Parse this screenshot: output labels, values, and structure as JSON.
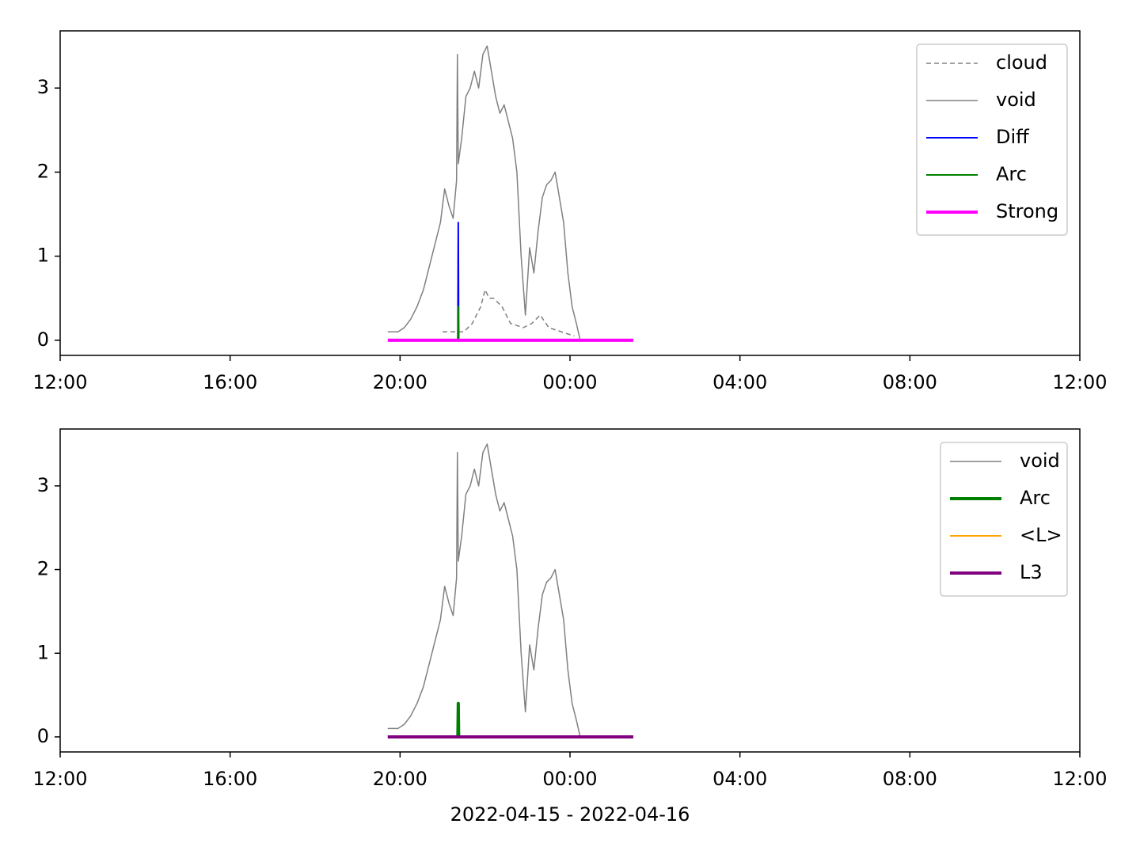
{
  "chart_data": [
    {
      "type": "line",
      "xlim": [
        0,
        24
      ],
      "ylim": [
        -0.18,
        3.68
      ],
      "xticks": [
        {
          "value": 0,
          "label": "12:00"
        },
        {
          "value": 4,
          "label": "16:00"
        },
        {
          "value": 8,
          "label": "20:00"
        },
        {
          "value": 12,
          "label": "00:00"
        },
        {
          "value": 16,
          "label": "04:00"
        },
        {
          "value": 20,
          "label": "08:00"
        },
        {
          "value": 24,
          "label": "12:00"
        }
      ],
      "yticks": [
        0,
        1,
        2,
        3
      ],
      "legend": "upper right",
      "series": [
        {
          "name": "cloud",
          "color": "#808080",
          "linestyle": "dashed",
          "linewidth": 1.5,
          "x": [
            9.0,
            9.3,
            9.5,
            9.7,
            9.9,
            10.0,
            10.1,
            10.2,
            10.4,
            10.6,
            10.9,
            11.1,
            11.3,
            11.5,
            11.8,
            12.1
          ],
          "values": [
            0.1,
            0.1,
            0.1,
            0.2,
            0.4,
            0.6,
            0.5,
            0.5,
            0.4,
            0.2,
            0.15,
            0.2,
            0.3,
            0.15,
            0.1,
            0.05
          ]
        },
        {
          "name": "void",
          "color": "#808080",
          "linewidth": 1.5,
          "x": [
            7.71,
            7.95,
            8.1,
            8.25,
            8.4,
            8.55,
            8.65,
            8.8,
            8.95,
            9.05,
            9.15,
            9.25,
            9.33,
            9.35,
            9.37,
            9.45,
            9.55,
            9.65,
            9.75,
            9.85,
            9.95,
            10.05,
            10.15,
            10.25,
            10.35,
            10.45,
            10.55,
            10.65,
            10.75,
            10.85,
            10.95,
            11.05,
            11.15,
            11.25,
            11.35,
            11.45,
            11.55,
            11.65,
            11.75,
            11.85,
            11.95,
            12.05,
            12.15,
            12.24
          ],
          "values": [
            0.1,
            0.1,
            0.15,
            0.25,
            0.4,
            0.6,
            0.8,
            1.1,
            1.4,
            1.8,
            1.6,
            1.45,
            1.9,
            3.4,
            2.1,
            2.4,
            2.9,
            3.0,
            3.2,
            3.0,
            3.4,
            3.5,
            3.2,
            2.9,
            2.7,
            2.8,
            2.6,
            2.4,
            2.0,
            1.0,
            0.3,
            1.1,
            0.8,
            1.3,
            1.7,
            1.85,
            1.9,
            2.0,
            1.7,
            1.4,
            0.8,
            0.4,
            0.2,
            0.0
          ]
        },
        {
          "name": "Diff",
          "color": "#0000ff",
          "linewidth": 2,
          "x": [
            9.36,
            9.37,
            9.38
          ],
          "values": [
            0,
            1.4,
            0
          ]
        },
        {
          "name": "Arc",
          "color": "#008000",
          "linewidth": 2,
          "x": [
            9.36,
            9.37,
            9.38
          ],
          "values": [
            0,
            0.4,
            0
          ]
        },
        {
          "name": "Strong",
          "color": "#ff00ff",
          "linewidth": 4,
          "x": [
            7.71,
            13.49
          ],
          "values": [
            0,
            0
          ]
        }
      ]
    },
    {
      "type": "line",
      "xlim": [
        0,
        24
      ],
      "ylim": [
        -0.18,
        3.68
      ],
      "xticks": [
        {
          "value": 0,
          "label": "12:00"
        },
        {
          "value": 4,
          "label": "16:00"
        },
        {
          "value": 8,
          "label": "20:00"
        },
        {
          "value": 12,
          "label": "00:00"
        },
        {
          "value": 16,
          "label": "04:00"
        },
        {
          "value": 20,
          "label": "08:00"
        },
        {
          "value": 24,
          "label": "12:00"
        }
      ],
      "yticks": [
        0,
        1,
        2,
        3
      ],
      "legend": "upper right",
      "xlabel": "2022-04-15 - 2022-04-16",
      "series": [
        {
          "name": "void",
          "color": "#808080",
          "linewidth": 1.5,
          "x": [
            7.71,
            7.95,
            8.1,
            8.25,
            8.4,
            8.55,
            8.65,
            8.8,
            8.95,
            9.05,
            9.15,
            9.25,
            9.33,
            9.35,
            9.37,
            9.45,
            9.55,
            9.65,
            9.75,
            9.85,
            9.95,
            10.05,
            10.15,
            10.25,
            10.35,
            10.45,
            10.55,
            10.65,
            10.75,
            10.85,
            10.95,
            11.05,
            11.15,
            11.25,
            11.35,
            11.45,
            11.55,
            11.65,
            11.75,
            11.85,
            11.95,
            12.05,
            12.15,
            12.24
          ],
          "values": [
            0.1,
            0.1,
            0.15,
            0.25,
            0.4,
            0.6,
            0.8,
            1.1,
            1.4,
            1.8,
            1.6,
            1.45,
            1.9,
            3.4,
            2.1,
            2.4,
            2.9,
            3.0,
            3.2,
            3.0,
            3.4,
            3.5,
            3.2,
            2.9,
            2.7,
            2.8,
            2.6,
            2.4,
            2.0,
            1.0,
            0.3,
            1.1,
            0.8,
            1.3,
            1.7,
            1.85,
            1.9,
            2.0,
            1.7,
            1.4,
            0.8,
            0.4,
            0.2,
            0.0
          ]
        },
        {
          "name": "Arc",
          "color": "#008000",
          "linewidth": 4,
          "x": [
            9.36,
            9.37,
            9.38
          ],
          "values": [
            0,
            0.4,
            0
          ]
        },
        {
          "name": "<L>",
          "color": "#ffa500",
          "linewidth": 2,
          "x": [
            7.71,
            13.49
          ],
          "values": [
            0,
            0
          ]
        },
        {
          "name": "L3",
          "color": "#800080",
          "linewidth": 4,
          "x": [
            7.71,
            13.49
          ],
          "values": [
            0,
            0
          ]
        }
      ]
    }
  ]
}
